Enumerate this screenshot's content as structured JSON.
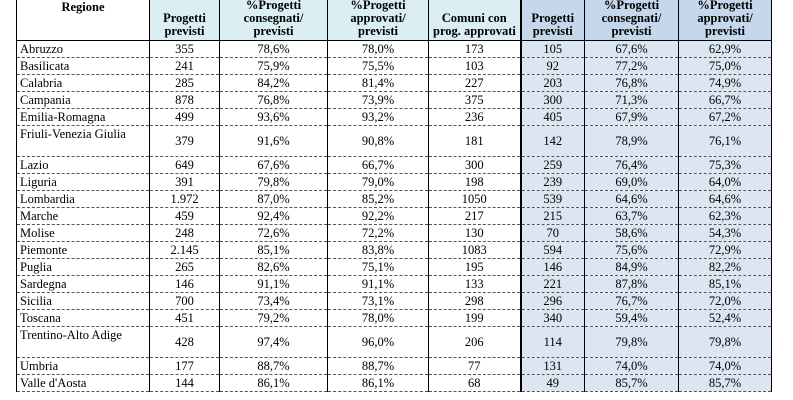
{
  "headers": [
    "Regione",
    "Progetti previsti",
    "%Progetti consegnati/ previsti",
    "%Progetti approvati/ previsti",
    "Comuni con prog. approvati",
    "Progetti previsti",
    "%Progetti consegnati/ previsti",
    "%Progetti approvati/ previsti"
  ],
  "header_lines": [
    [
      "Regione"
    ],
    [
      "Progetti",
      "previsti"
    ],
    [
      "%Progetti",
      "consegnati/",
      "previsti"
    ],
    [
      "%Progetti",
      "approvati/",
      "previsti"
    ],
    [
      "Comuni con",
      "prog. approvati"
    ],
    [
      "Progetti",
      "previsti"
    ],
    [
      "%Progetti",
      "consegnati/",
      "previsti"
    ],
    [
      "%Progetti",
      "approvati/",
      "previsti"
    ]
  ],
  "rows": [
    [
      "Abruzzo",
      "355",
      "78,6%",
      "78,0%",
      "173",
      "105",
      "67,6%",
      "62,9%"
    ],
    [
      "Basilicata",
      "241",
      "75,9%",
      "75,5%",
      "103",
      "92",
      "77,2%",
      "75,0%"
    ],
    [
      "Calabria",
      "285",
      "84,2%",
      "81,4%",
      "227",
      "203",
      "76,8%",
      "74,9%"
    ],
    [
      "Campania",
      "878",
      "76,8%",
      "73,9%",
      "375",
      "300",
      "71,3%",
      "66,7%"
    ],
    [
      "Emilia-Romagna",
      "499",
      "93,6%",
      "93,2%",
      "236",
      "405",
      "67,9%",
      "67,2%"
    ],
    [
      "Friuli-Venezia Giulia",
      "379",
      "91,6%",
      "90,8%",
      "181",
      "142",
      "78,9%",
      "76,1%"
    ],
    [
      "Lazio",
      "649",
      "67,6%",
      "66,7%",
      "300",
      "259",
      "76,4%",
      "75,3%"
    ],
    [
      "Liguria",
      "391",
      "79,8%",
      "79,0%",
      "198",
      "239",
      "69,0%",
      "64,0%"
    ],
    [
      "Lombardia",
      "1.972",
      "87,0%",
      "85,2%",
      "1050",
      "539",
      "64,6%",
      "64,6%"
    ],
    [
      "Marche",
      "459",
      "92,4%",
      "92,2%",
      "217",
      "215",
      "63,7%",
      "62,3%"
    ],
    [
      "Molise",
      "248",
      "72,6%",
      "72,2%",
      "130",
      "70",
      "58,6%",
      "54,3%"
    ],
    [
      "Piemonte",
      "2.145",
      "85,1%",
      "83,8%",
      "1083",
      "594",
      "75,6%",
      "72,9%"
    ],
    [
      "Puglia",
      "265",
      "82,6%",
      "75,1%",
      "195",
      "146",
      "84,9%",
      "82,2%"
    ],
    [
      "Sardegna",
      "146",
      "91,1%",
      "91,1%",
      "133",
      "221",
      "87,8%",
      "85,1%"
    ],
    [
      "Sicilia",
      "700",
      "73,4%",
      "73,1%",
      "298",
      "296",
      "76,7%",
      "72,0%"
    ],
    [
      "Toscana",
      "451",
      "79,2%",
      "78,0%",
      "199",
      "340",
      "59,4%",
      "52,4%"
    ],
    [
      "Trentino-Alto Adige",
      "428",
      "97,4%",
      "96,0%",
      "206",
      "114",
      "79,8%",
      "79,8%"
    ],
    [
      "Umbria",
      "177",
      "88,7%",
      "88,7%",
      "77",
      "131",
      "74,0%",
      "74,0%"
    ],
    [
      "Valle d'Aosta",
      "144",
      "86,1%",
      "86,1%",
      "68",
      "49",
      "85,7%",
      "85,7%"
    ]
  ],
  "two_line_rows": [
    "Friuli-Venezia Giulia",
    "Trentino-Alto Adige"
  ],
  "colors": {
    "header_blue": "#c5d7eb",
    "cell_blue": "#dbe6f2",
    "header_light": "#dbeef3"
  }
}
